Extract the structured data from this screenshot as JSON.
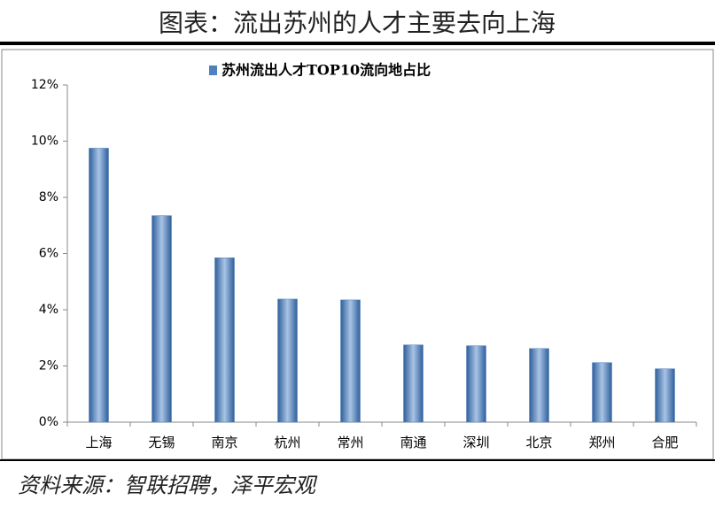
{
  "chart_data": {
    "type": "bar",
    "title": "图表：流出苏州的人才主要去向上海",
    "source": "资料来源：智联招聘，泽平宏观",
    "categories": [
      "上海",
      "无锡",
      "南京",
      "杭州",
      "常州",
      "南通",
      "深圳",
      "北京",
      "郑州",
      "合肥"
    ],
    "series": [
      {
        "name": "苏州流出人才TOP10流向地占比",
        "color": "#4f81bd",
        "values": [
          9.75,
          7.35,
          5.85,
          4.38,
          4.35,
          2.75,
          2.72,
          2.62,
          2.12,
          1.9
        ]
      }
    ],
    "ylim": [
      0,
      12
    ],
    "yticks": [
      {
        "value": 0,
        "label": "0%"
      },
      {
        "value": 2,
        "label": "2%"
      },
      {
        "value": 4,
        "label": "4%"
      },
      {
        "value": 6,
        "label": "6%"
      },
      {
        "value": 8,
        "label": "8%"
      },
      {
        "value": 10,
        "label": "10%"
      },
      {
        "value": 12,
        "label": "12%"
      }
    ],
    "grid": false,
    "legend": "top"
  }
}
